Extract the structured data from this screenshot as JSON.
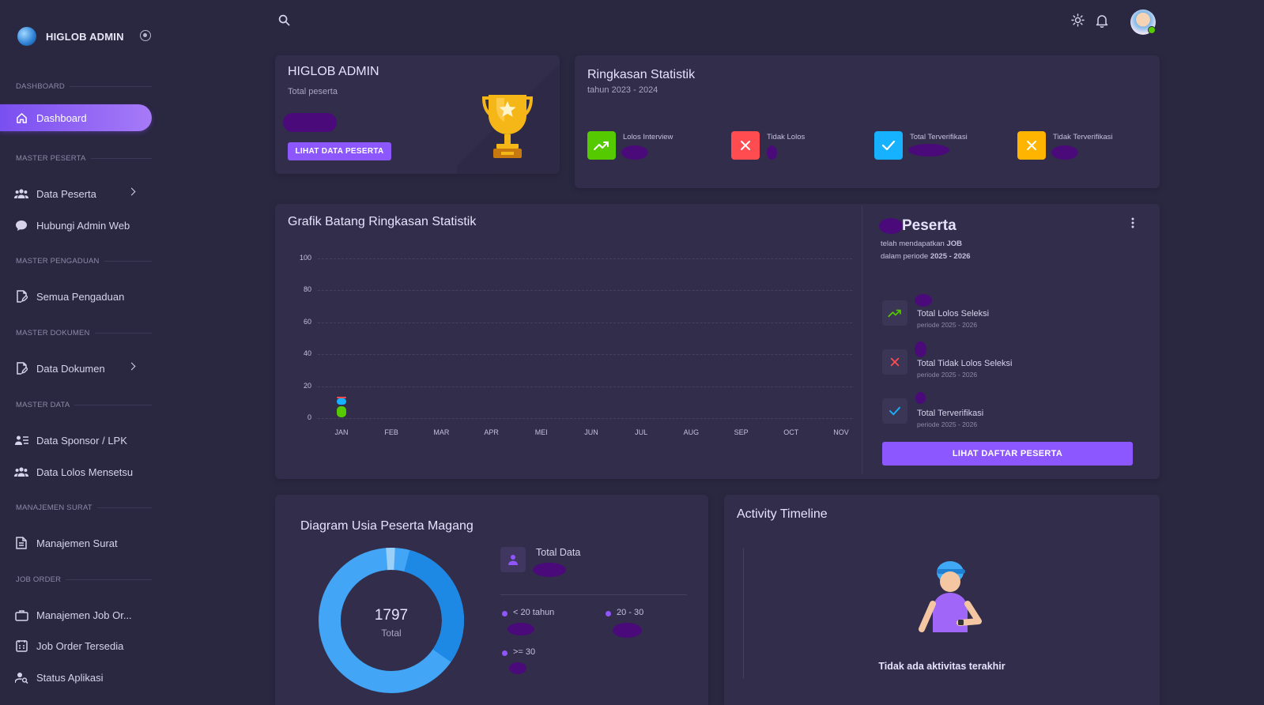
{
  "brand": {
    "name": "HIGLOB ADMIN"
  },
  "sidebar": {
    "sections": [
      "DASHBOARD",
      "MASTER PESERTA",
      "MASTER PENGADUAN",
      "MASTER DOKUMEN",
      "MASTER DATA",
      "MANAJEMEN SURAT",
      "JOB ORDER"
    ],
    "items": [
      {
        "label": "Dashboard"
      },
      {
        "label": "Data Peserta"
      },
      {
        "label": "Hubungi Admin Web"
      },
      {
        "label": "Semua Pengaduan"
      },
      {
        "label": "Data Dokumen"
      },
      {
        "label": "Data Sponsor / LPK"
      },
      {
        "label": "Data Lolos Mensetsu"
      },
      {
        "label": "Manajemen Surat"
      },
      {
        "label": "Manajemen Job Or..."
      },
      {
        "label": "Job Order Tersedia"
      },
      {
        "label": "Status Aplikasi"
      }
    ]
  },
  "welcome": {
    "title": "HIGLOB ADMIN",
    "subtitle": "Total peserta",
    "button": "LIHAT DATA PESERTA"
  },
  "summary": {
    "title": "Ringkasan Statistik",
    "subtitle": "tahun 2023 - 2024",
    "stats": [
      {
        "label": "Lolos Interview",
        "color": "#56ca00"
      },
      {
        "label": "Tidak Lolos",
        "color": "#ff4c51"
      },
      {
        "label": "Total Terverifikasi",
        "color": "#16b1ff"
      },
      {
        "label": "Tidak Terverifikasi",
        "color": "#ffb400"
      }
    ]
  },
  "bar_chart": {
    "title": "Grafik Batang Ringkasan Statistik"
  },
  "chart_data": {
    "type": "bar",
    "title": "Grafik Batang Ringkasan Statistik",
    "categories": [
      "JAN",
      "FEB",
      "MAR",
      "APR",
      "MEI",
      "JUN",
      "JUL",
      "AUG",
      "SEP",
      "OCT",
      "NOV"
    ],
    "yticks": [
      "100",
      "80",
      "60",
      "40",
      "20",
      "0"
    ],
    "ylim": [
      0,
      100
    ],
    "series": [
      {
        "name": "Lolos Interview",
        "color": "#56ca00",
        "values": [
          8,
          0,
          0,
          0,
          0,
          0,
          0,
          0,
          0,
          0,
          0
        ]
      },
      {
        "name": "Total Terverifikasi",
        "color": "#16b1ff",
        "values": [
          5,
          0,
          0,
          0,
          0,
          0,
          0,
          0,
          0,
          0,
          0
        ]
      },
      {
        "name": "Tidak Lolos",
        "color": "#ff4c51",
        "values": [
          1,
          0,
          0,
          0,
          0,
          0,
          0,
          0,
          0,
          0,
          0
        ]
      }
    ]
  },
  "peserta_panel": {
    "title": "Peserta",
    "line1_prefix": "telah mendapatkan ",
    "line1_bold": "JOB",
    "line2_prefix": "dalam periode ",
    "line2_bold": "2025 - 2026",
    "rows": [
      {
        "title": "Total Lolos Seleksi",
        "sub": "periode 2025 - 2026"
      },
      {
        "title": "Total Tidak Lolos Seleksi",
        "sub": "periode 2025 - 2026"
      },
      {
        "title": "Total Terverifikasi",
        "sub": "periode 2025 - 2026"
      }
    ],
    "button": "LIHAT DAFTAR PESERTA"
  },
  "donut": {
    "title": "Diagram Usia Peserta Magang",
    "total_value": "1797",
    "total_label": "Total",
    "total_data_label": "Total Data",
    "legend": [
      "< 20 tahun",
      "20 - 30",
      ">= 30"
    ]
  },
  "timeline": {
    "title": "Activity Timeline",
    "empty_text": "Tidak ada aktivitas terakhir"
  }
}
